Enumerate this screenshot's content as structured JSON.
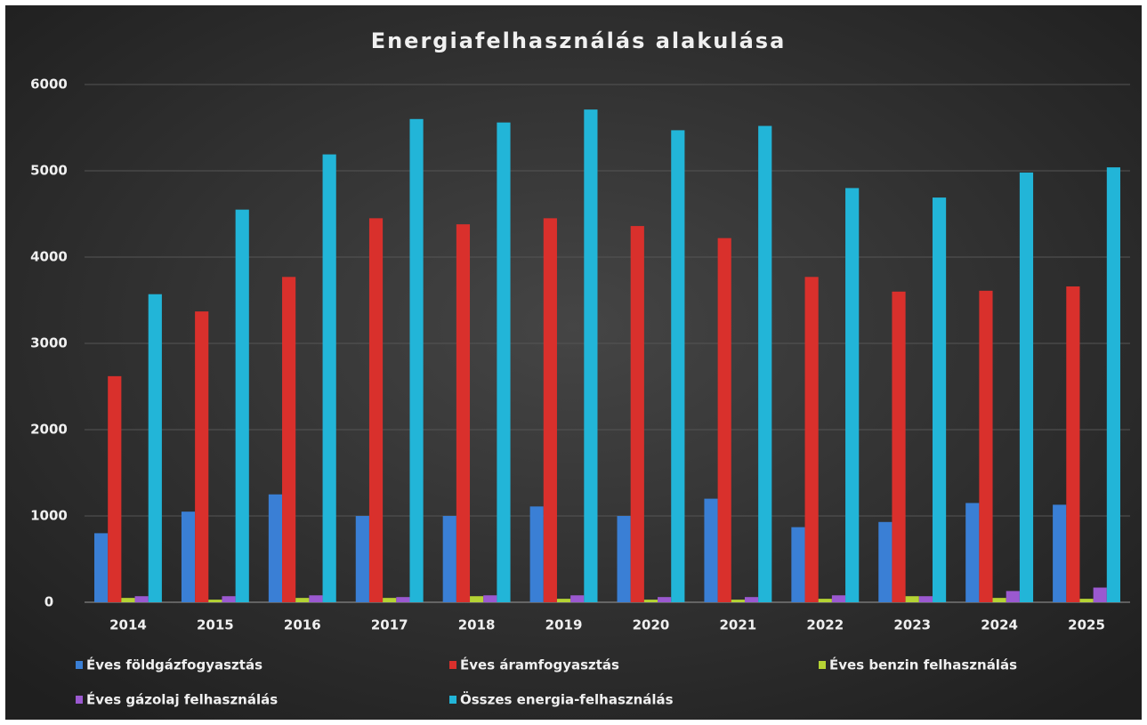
{
  "chart_data": {
    "type": "bar",
    "title": "Energiafelhasználás alakulása",
    "categories": [
      "2014",
      "2015",
      "2016",
      "2017",
      "2018",
      "2019",
      "2020",
      "2021",
      "2022",
      "2023",
      "2024",
      "2025"
    ],
    "series": [
      {
        "name": "Éves földgázfogyasztás",
        "color": "#3a7fd5",
        "values": [
          800,
          1050,
          1250,
          1000,
          1000,
          1110,
          1000,
          1200,
          870,
          930,
          1150,
          1130
        ]
      },
      {
        "name": "Éves áramfogyasztás",
        "color": "#d9302c",
        "values": [
          2620,
          3370,
          3770,
          4450,
          4380,
          4450,
          4360,
          4220,
          3770,
          3600,
          3610,
          3660
        ]
      },
      {
        "name": "Éves benzin felhasználás",
        "color": "#b5d334",
        "values": [
          50,
          30,
          50,
          50,
          70,
          40,
          30,
          30,
          40,
          70,
          50,
          40
        ]
      },
      {
        "name": "Éves gázolaj felhasználás",
        "color": "#9b59d0",
        "values": [
          70,
          70,
          80,
          60,
          80,
          80,
          60,
          60,
          80,
          70,
          130,
          170
        ]
      },
      {
        "name": "Összes energia-felhasználás",
        "color": "#22b5d8",
        "values": [
          3570,
          4550,
          5190,
          5600,
          5560,
          5710,
          5470,
          5520,
          4800,
          4690,
          4980,
          5040
        ]
      }
    ],
    "ylim": [
      0,
      6000
    ],
    "yticks": [
      0,
      1000,
      2000,
      3000,
      4000,
      5000,
      6000
    ],
    "grid": true,
    "legend": "bottom"
  }
}
